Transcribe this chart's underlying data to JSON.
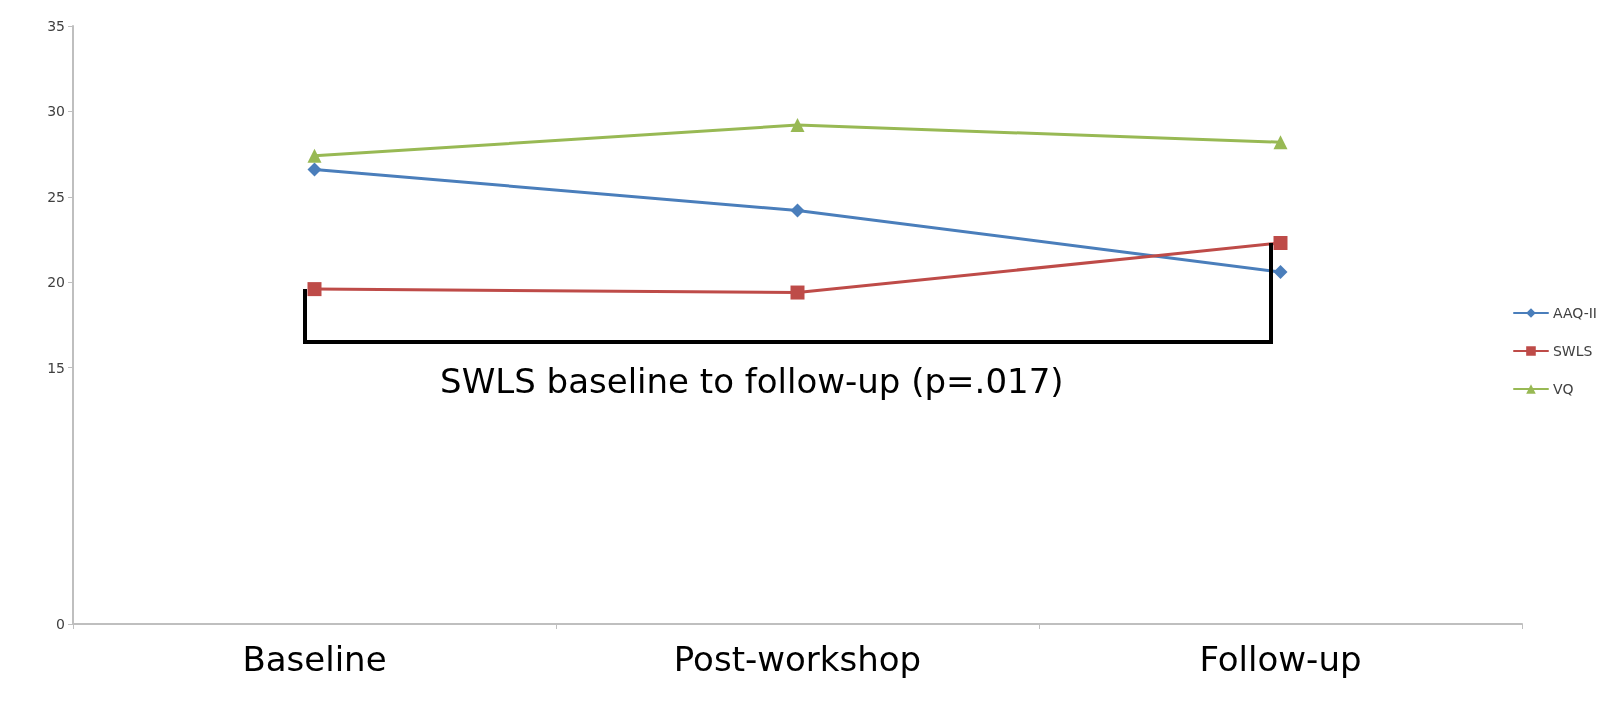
{
  "chart_data": {
    "type": "line",
    "categories": [
      "Baseline",
      "Post-workshop",
      "Follow-up"
    ],
    "series": [
      {
        "name": "AAQ-II",
        "color": "#4a7ebb",
        "marker": "diamond",
        "values": [
          26.6,
          24.2,
          20.6
        ]
      },
      {
        "name": "SWLS",
        "color": "#be4b48",
        "marker": "square",
        "values": [
          19.6,
          19.4,
          22.3
        ]
      },
      {
        "name": "VQ",
        "color": "#98b954",
        "marker": "triangle",
        "values": [
          27.4,
          29.2,
          28.2
        ]
      }
    ],
    "ylim": [
      0,
      35
    ],
    "yticks": [
      0,
      15,
      20,
      25,
      30,
      35
    ],
    "grid": false,
    "legend": "right",
    "annotations": [
      "SWLS baseline to follow-up (p=.017)"
    ]
  }
}
